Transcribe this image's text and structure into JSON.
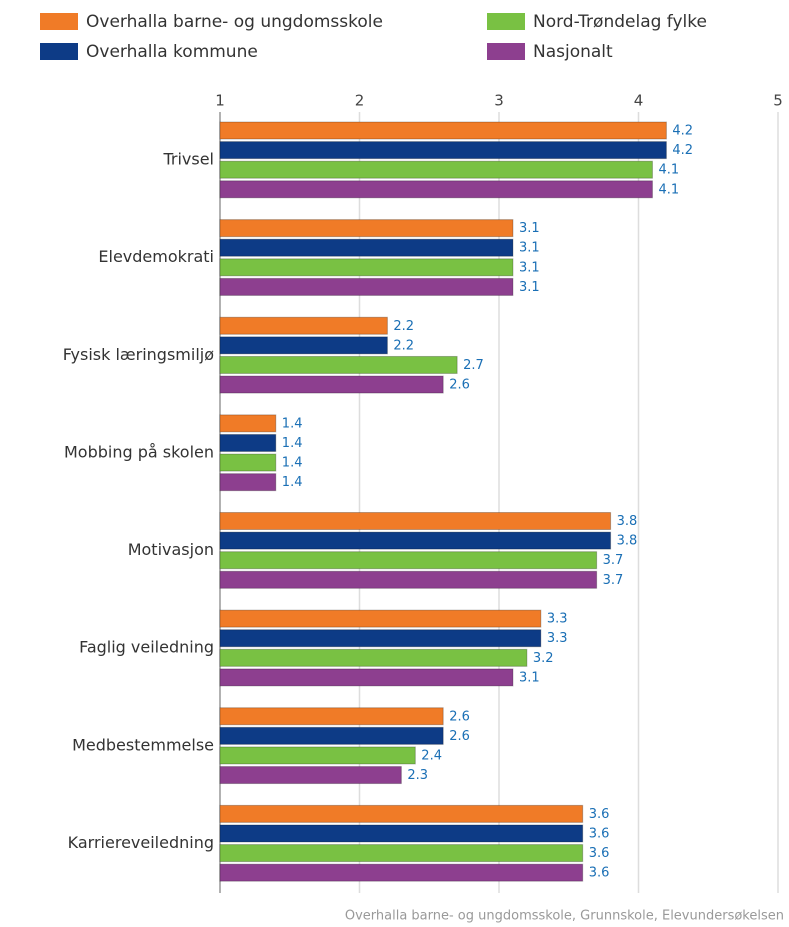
{
  "chart_data": {
    "type": "hbar",
    "categories": [
      "Trivsel",
      "Elevdemokrati",
      "Fysisk læringsmiljø",
      "Mobbing på skolen",
      "Motivasjon",
      "Faglig veiledning",
      "Medbestemmelse",
      "Karriereveiledning"
    ],
    "series": [
      {
        "name": "Overhalla barne- og ungdomsskole",
        "color": "#f07b27",
        "values": [
          4.2,
          3.1,
          2.2,
          1.4,
          3.8,
          3.3,
          2.6,
          3.6
        ]
      },
      {
        "name": "Overhalla kommune",
        "color": "#0d3b86",
        "values": [
          4.2,
          3.1,
          2.2,
          1.4,
          3.8,
          3.3,
          2.6,
          3.6
        ]
      },
      {
        "name": "Nord-Trøndelag fylke",
        "color": "#79c143",
        "values": [
          4.1,
          3.1,
          2.7,
          1.4,
          3.7,
          3.2,
          2.4,
          3.6
        ]
      },
      {
        "name": "Nasjonalt",
        "color": "#8d3f8f",
        "values": [
          4.1,
          3.1,
          2.6,
          1.4,
          3.7,
          3.1,
          2.3,
          3.6
        ]
      }
    ],
    "xlim": [
      1,
      5
    ],
    "xticks": [
      1,
      2,
      3,
      4,
      5
    ],
    "grid": true,
    "source": "Overhalla barne- og ungdomsskole, Grunnskole, Elevundersøkelsen"
  }
}
